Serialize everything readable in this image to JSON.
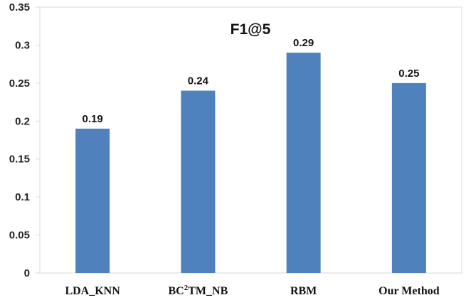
{
  "chart_data": {
    "type": "bar",
    "title": "F1@5",
    "categories": [
      "LDA_KNN",
      "BC2TM_NB",
      "RBM",
      "Our Method"
    ],
    "category_parts": [
      [
        "LDA_KNN"
      ],
      [
        "BC",
        "2",
        "TM_NB"
      ],
      [
        "RBM"
      ],
      [
        "Our Method"
      ]
    ],
    "values": [
      0.19,
      0.24,
      0.29,
      0.25
    ],
    "value_labels": [
      "0.19",
      "0.24",
      "0.29",
      "0.25"
    ],
    "ylim": [
      0,
      0.35
    ],
    "yticks": [
      0,
      0.05,
      0.1,
      0.15,
      0.2,
      0.25,
      0.3,
      0.35
    ],
    "ytick_labels": [
      "0",
      "0.05",
      "0.1",
      "0.15",
      "0.2",
      "0.25",
      "0.3",
      "0.35"
    ],
    "xlabel": "",
    "ylabel": "",
    "grid": false,
    "legend": "none",
    "bar_color": "#4f81bd"
  }
}
